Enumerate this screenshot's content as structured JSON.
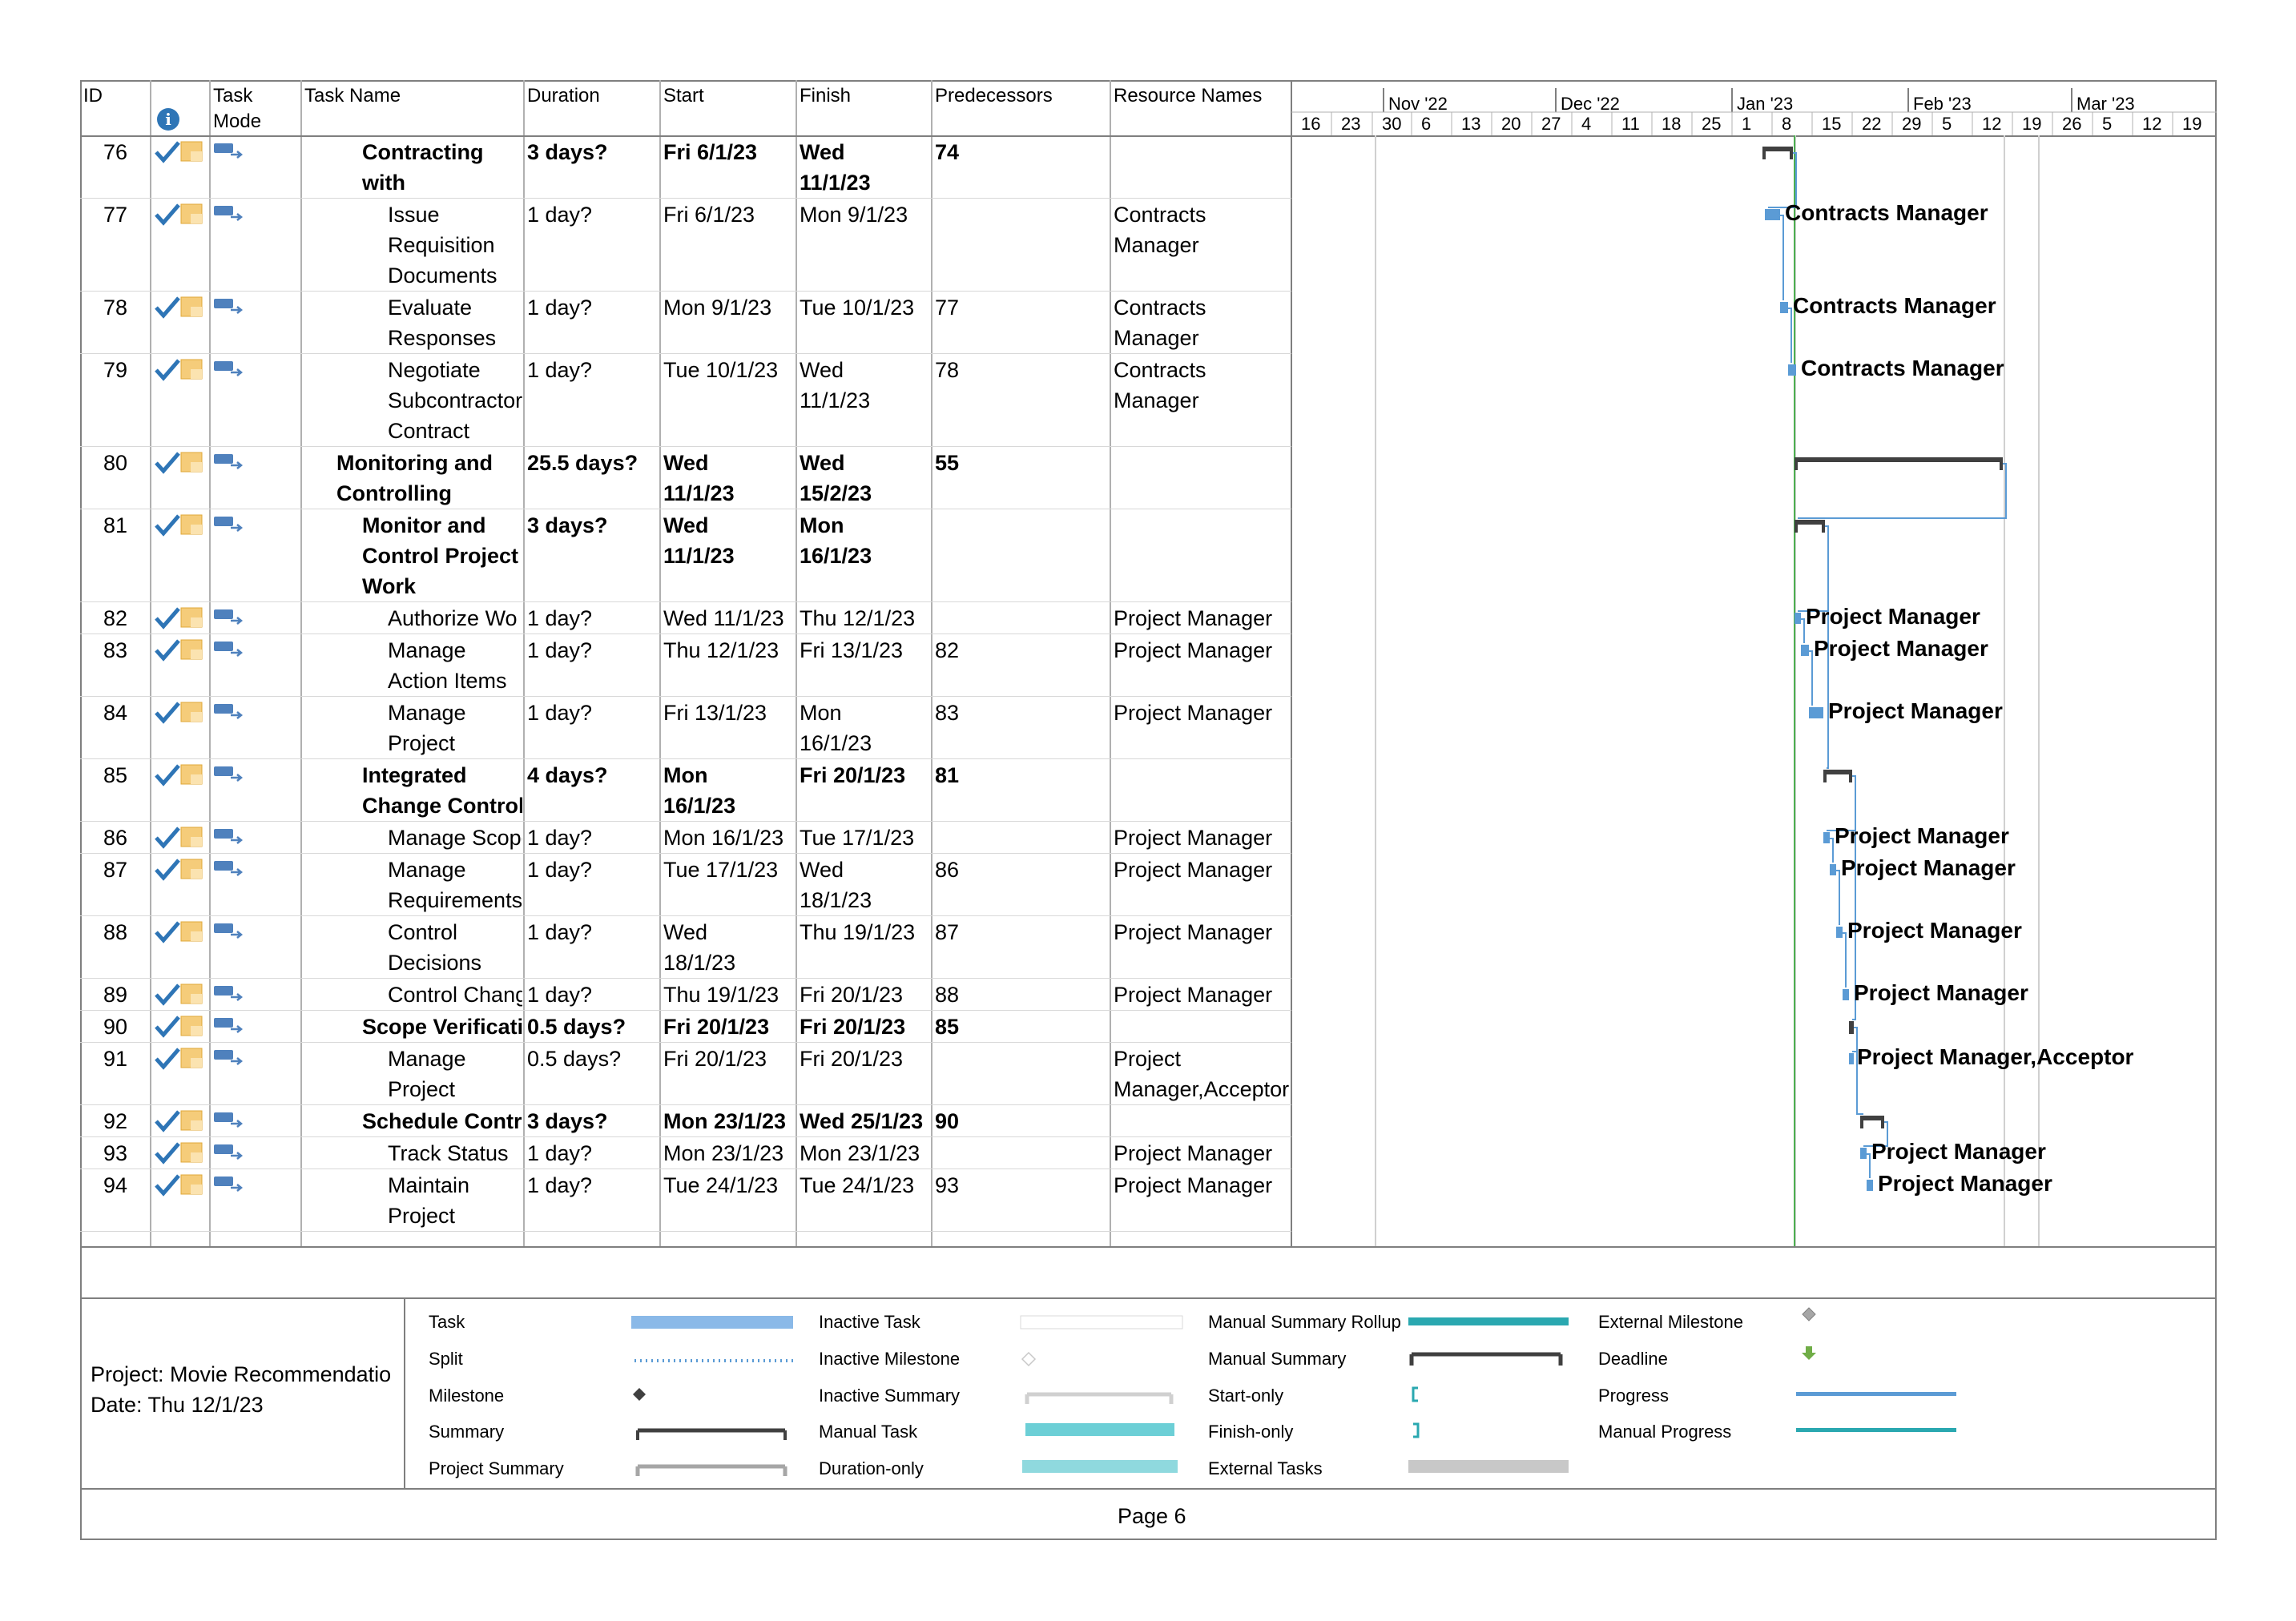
{
  "columns": {
    "id": "ID",
    "info": "i",
    "mode": "Task\nMode",
    "name": "Task Name",
    "duration": "Duration",
    "start": "Start",
    "finish": "Finish",
    "predecessors": "Predecessors",
    "resources": "Resource Names"
  },
  "timescale": {
    "months": [
      "Nov '22",
      "Dec '22",
      "Jan '23",
      "Feb '23",
      "Mar '23"
    ],
    "days": [
      "16",
      "23",
      "30",
      "6",
      "13",
      "20",
      "27",
      "4",
      "11",
      "18",
      "25",
      "1",
      "8",
      "15",
      "22",
      "29",
      "5",
      "12",
      "19",
      "26",
      "5",
      "12",
      "19"
    ]
  },
  "rows": [
    {
      "id": "76",
      "name": "Contracting\nwith",
      "duration": "3 days?",
      "start": "Fri 6/1/23",
      "finish": "Wed\n11/1/23",
      "pred": "74",
      "res": "",
      "bold": true,
      "indent": 2,
      "lines": 2
    },
    {
      "id": "77",
      "name": "Issue\nRequisition\nDocuments",
      "duration": "1 day?",
      "start": "Fri 6/1/23",
      "finish": "Mon 9/1/23",
      "pred": "",
      "res": "Contracts\nManager",
      "bold": false,
      "indent": 3,
      "lines": 3
    },
    {
      "id": "78",
      "name": "Evaluate\nResponses",
      "duration": "1 day?",
      "start": "Mon 9/1/23",
      "finish": "Tue 10/1/23",
      "pred": "77",
      "res": "Contracts\nManager",
      "bold": false,
      "indent": 3,
      "lines": 2
    },
    {
      "id": "79",
      "name": "Negotiate\nSubcontractor\nContract",
      "duration": "1 day?",
      "start": "Tue 10/1/23",
      "finish": "Wed\n11/1/23",
      "pred": "78",
      "res": "Contracts\nManager",
      "bold": false,
      "indent": 3,
      "lines": 3
    },
    {
      "id": "80",
      "name": "Monitoring and\nControlling",
      "duration": "25.5 days?",
      "start": "Wed\n11/1/23",
      "finish": "Wed\n15/2/23",
      "pred": "55",
      "res": "",
      "bold": true,
      "indent": 1,
      "lines": 2
    },
    {
      "id": "81",
      "name": "Monitor and\nControl Project\nWork",
      "duration": "3 days?",
      "start": "Wed\n11/1/23",
      "finish": "Mon\n16/1/23",
      "pred": "",
      "res": "",
      "bold": true,
      "indent": 2,
      "lines": 3
    },
    {
      "id": "82",
      "name": "Authorize Wo",
      "duration": "1 day?",
      "start": "Wed 11/1/23",
      "finish": "Thu 12/1/23",
      "pred": "",
      "res": "Project Manager",
      "bold": false,
      "indent": 3,
      "lines": 1
    },
    {
      "id": "83",
      "name": "Manage\nAction Items",
      "duration": "1 day?",
      "start": "Thu 12/1/23",
      "finish": "Fri 13/1/23",
      "pred": "82",
      "res": "Project Manager",
      "bold": false,
      "indent": 3,
      "lines": 2
    },
    {
      "id": "84",
      "name": "Manage\nProject",
      "duration": "1 day?",
      "start": "Fri 13/1/23",
      "finish": "Mon\n16/1/23",
      "pred": "83",
      "res": "Project Manager",
      "bold": false,
      "indent": 3,
      "lines": 2
    },
    {
      "id": "85",
      "name": "Integrated\nChange Control",
      "duration": "4 days?",
      "start": "Mon\n16/1/23",
      "finish": "Fri 20/1/23",
      "pred": "81",
      "res": "",
      "bold": true,
      "indent": 2,
      "lines": 2
    },
    {
      "id": "86",
      "name": "Manage Scope",
      "duration": "1 day?",
      "start": "Mon 16/1/23",
      "finish": "Tue 17/1/23",
      "pred": "",
      "res": "Project Manager",
      "bold": false,
      "indent": 3,
      "lines": 1
    },
    {
      "id": "87",
      "name": "Manage\nRequirements",
      "duration": "1 day?",
      "start": "Tue 17/1/23",
      "finish": "Wed\n18/1/23",
      "pred": "86",
      "res": "Project Manager",
      "bold": false,
      "indent": 3,
      "lines": 2
    },
    {
      "id": "88",
      "name": "Control\nDecisions",
      "duration": "1 day?",
      "start": "Wed\n18/1/23",
      "finish": "Thu 19/1/23",
      "pred": "87",
      "res": "Project Manager",
      "bold": false,
      "indent": 3,
      "lines": 2
    },
    {
      "id": "89",
      "name": "Control Chang",
      "duration": "1 day?",
      "start": "Thu 19/1/23",
      "finish": "Fri 20/1/23",
      "pred": "88",
      "res": "Project Manager",
      "bold": false,
      "indent": 3,
      "lines": 1
    },
    {
      "id": "90",
      "name": "Scope Verificati",
      "duration": "0.5 days?",
      "start": "Fri 20/1/23",
      "finish": "Fri 20/1/23",
      "pred": "85",
      "res": "",
      "bold": true,
      "indent": 2,
      "lines": 1
    },
    {
      "id": "91",
      "name": "Manage\nProject",
      "duration": "0.5 days?",
      "start": "Fri 20/1/23",
      "finish": "Fri 20/1/23",
      "pred": "",
      "res": "Project\nManager,Acceptor",
      "bold": false,
      "indent": 3,
      "lines": 2
    },
    {
      "id": "92",
      "name": "Schedule Contro",
      "duration": "3 days?",
      "start": "Mon 23/1/23",
      "finish": "Wed 25/1/23",
      "pred": "90",
      "res": "",
      "bold": true,
      "indent": 2,
      "lines": 1
    },
    {
      "id": "93",
      "name": "Track Status",
      "duration": "1 day?",
      "start": "Mon 23/1/23",
      "finish": "Mon 23/1/23",
      "pred": "",
      "res": "Project Manager",
      "bold": false,
      "indent": 3,
      "lines": 1
    },
    {
      "id": "94",
      "name": "Maintain\nProject",
      "duration": "1 day?",
      "start": "Tue 24/1/23",
      "finish": "Tue 24/1/23",
      "pred": "93",
      "res": "Project Manager",
      "bold": false,
      "indent": 3,
      "lines": 2
    }
  ],
  "gantt_labels": [
    {
      "row": 1,
      "text": "Contracts Manager"
    },
    {
      "row": 2,
      "text": "Contracts Manager"
    },
    {
      "row": 3,
      "text": "Contracts Manager"
    },
    {
      "row": 6,
      "text": "Project Manager"
    },
    {
      "row": 7,
      "text": "Project Manager"
    },
    {
      "row": 8,
      "text": "Project Manager"
    },
    {
      "row": 10,
      "text": "Project Manager"
    },
    {
      "row": 11,
      "text": "Project Manager"
    },
    {
      "row": 12,
      "text": "Project Manager"
    },
    {
      "row": 13,
      "text": "Project Manager"
    },
    {
      "row": 15,
      "text": "Project Manager,Acceptor"
    },
    {
      "row": 17,
      "text": "Project Manager"
    },
    {
      "row": 18,
      "text": "Project Manager"
    }
  ],
  "legend": {
    "col1": [
      "Task",
      "Split",
      "Milestone",
      "Summary",
      "Project Summary"
    ],
    "col2": [
      "Inactive Task",
      "Inactive Milestone",
      "Inactive Summary",
      "Manual Task",
      "Duration-only"
    ],
    "col3": [
      "Manual Summary Rollup",
      "Manual Summary",
      "Start-only",
      "Finish-only",
      "External Tasks"
    ],
    "col4": [
      "External Milestone",
      "Deadline",
      "Progress",
      "Manual Progress"
    ]
  },
  "footer": {
    "project": "Project: Movie Recommendatio",
    "date": "Date: Thu 12/1/23",
    "page": "Page 6"
  },
  "colors": {
    "task_bar": "#5b9bd5",
    "summary_bar": "#404040",
    "today_line": "#4caf50",
    "manual": "#2aa8b0",
    "check": "#2e75b6"
  }
}
